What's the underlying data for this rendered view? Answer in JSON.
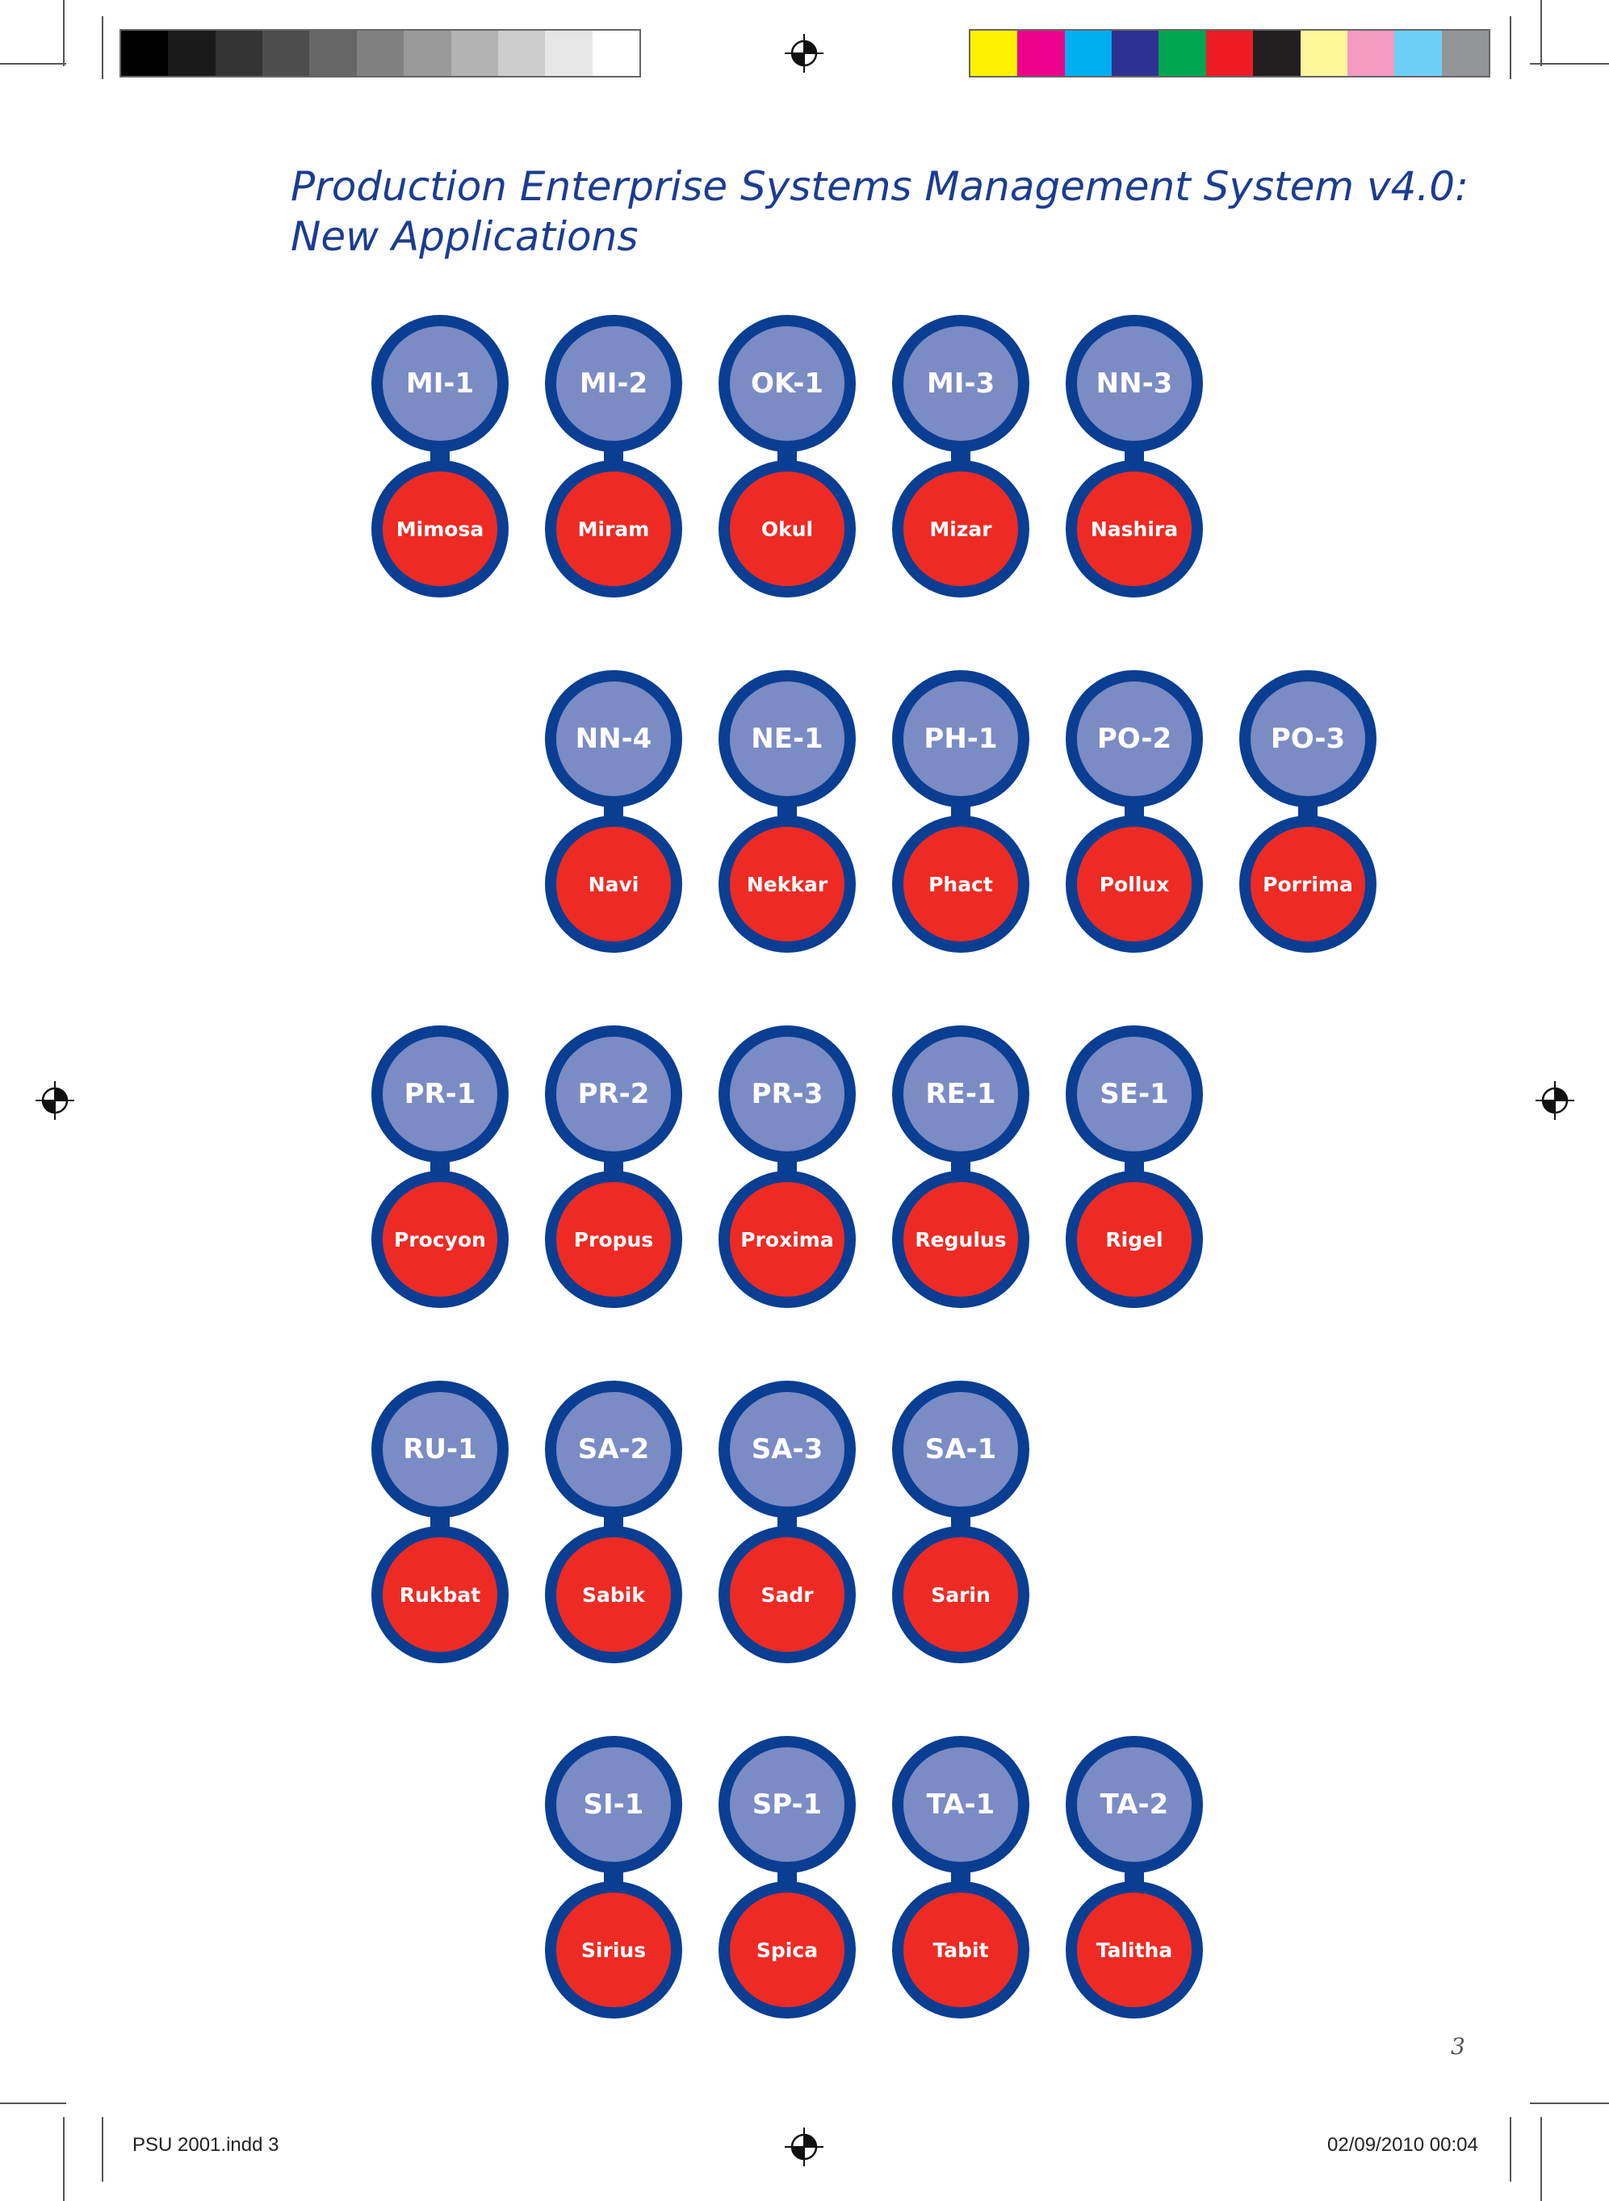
{
  "document": {
    "title_line1": "Production Enterprise Systems Management System v4.0:",
    "title_line2": "New Applications",
    "page_number": "3"
  },
  "print_marks": {
    "slug_left": "PSU 2001.indd   3",
    "slug_right": "02/09/2010   00:04",
    "gray_swatches": [
      "#000000",
      "#1a1a1a",
      "#333333",
      "#4d4d4d",
      "#666666",
      "#808080",
      "#999999",
      "#b3b3b3",
      "#cccccc",
      "#e6e6e6",
      "#ffffff"
    ],
    "color_swatches": [
      "#fff200",
      "#ec008c",
      "#00aeef",
      "#2e3192",
      "#00a651",
      "#ed1c24",
      "#231f20",
      "#fff799",
      "#f49ac1",
      "#6dcff6",
      "#939598"
    ]
  },
  "colors": {
    "ring": "#0a3e93",
    "code_fill": "#7b8bc4",
    "name_fill": "#ed2b24",
    "title": "#1b3d8f"
  },
  "rows": [
    {
      "apps": [
        {
          "code": "MI-1",
          "name": "Mimosa"
        },
        {
          "code": "MI-2",
          "name": "Miram"
        },
        {
          "code": "OK-1",
          "name": "Okul"
        },
        {
          "code": "MI-3",
          "name": "Mizar"
        },
        {
          "code": "NN-3",
          "name": "Nashira"
        }
      ]
    },
    {
      "apps": [
        {
          "code": "NN-4",
          "name": "Navi"
        },
        {
          "code": "NE-1",
          "name": "Nekkar"
        },
        {
          "code": "PH-1",
          "name": "Phact"
        },
        {
          "code": "PO-2",
          "name": "Pollux"
        },
        {
          "code": "PO-3",
          "name": "Porrima"
        }
      ]
    },
    {
      "apps": [
        {
          "code": "PR-1",
          "name": "Procyon"
        },
        {
          "code": "PR-2",
          "name": "Propus"
        },
        {
          "code": "PR-3",
          "name": "Proxima"
        },
        {
          "code": "RE-1",
          "name": "Regulus"
        },
        {
          "code": "SE-1",
          "name": "Rigel"
        }
      ]
    },
    {
      "apps": [
        {
          "code": "RU-1",
          "name": "Rukbat"
        },
        {
          "code": "SA-2",
          "name": "Sabik"
        },
        {
          "code": "SA-3",
          "name": "Sadr"
        },
        {
          "code": "SA-1",
          "name": "Sarin"
        }
      ]
    },
    {
      "apps": [
        {
          "code": "SI-1",
          "name": "Sirius"
        },
        {
          "code": "SP-1",
          "name": "Spica"
        },
        {
          "code": "TA-1",
          "name": "Tabit"
        },
        {
          "code": "TA-2",
          "name": "Talitha"
        }
      ]
    }
  ]
}
